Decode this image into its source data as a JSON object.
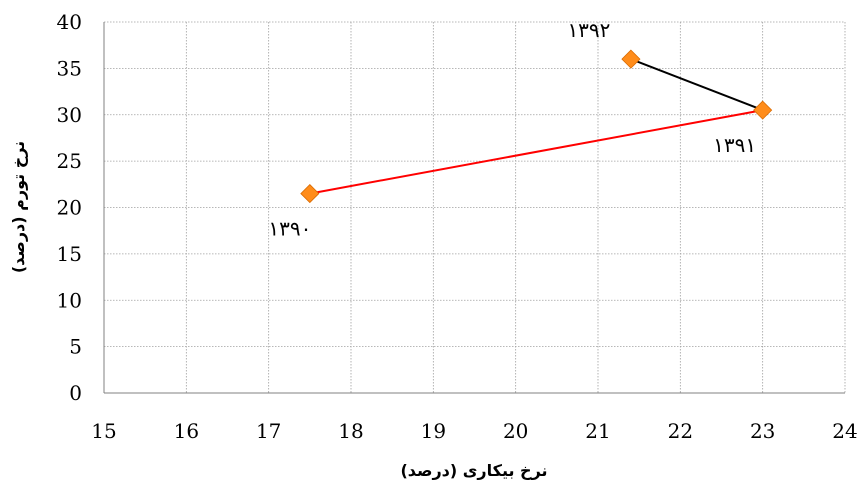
{
  "chart_data": {
    "type": "scatter",
    "title": "",
    "xlabel": "نرخ بیکاری (درصد)",
    "ylabel": "نرخ تورم (درصد)",
    "xlim": [
      15,
      24
    ],
    "ylim": [
      0,
      40
    ],
    "x_ticks": [
      15,
      16,
      17,
      18,
      19,
      20,
      21,
      22,
      23,
      24
    ],
    "y_ticks": [
      0,
      5,
      10,
      15,
      20,
      25,
      30,
      35,
      40
    ],
    "grid": true,
    "legend": "none",
    "points": [
      {
        "label": "۱۳۹۰",
        "x": 17.5,
        "y": 21.5
      },
      {
        "label": "۱۳۹۱",
        "x": 23.0,
        "y": 30.5
      },
      {
        "label": "۱۳۹۲",
        "x": 21.4,
        "y": 36.0
      }
    ],
    "segments": [
      {
        "from": 0,
        "to": 1,
        "color": "#ff0000"
      },
      {
        "from": 1,
        "to": 2,
        "color": "#000000"
      }
    ],
    "marker": {
      "shape": "diamond",
      "color": "#ff8c1a"
    }
  }
}
